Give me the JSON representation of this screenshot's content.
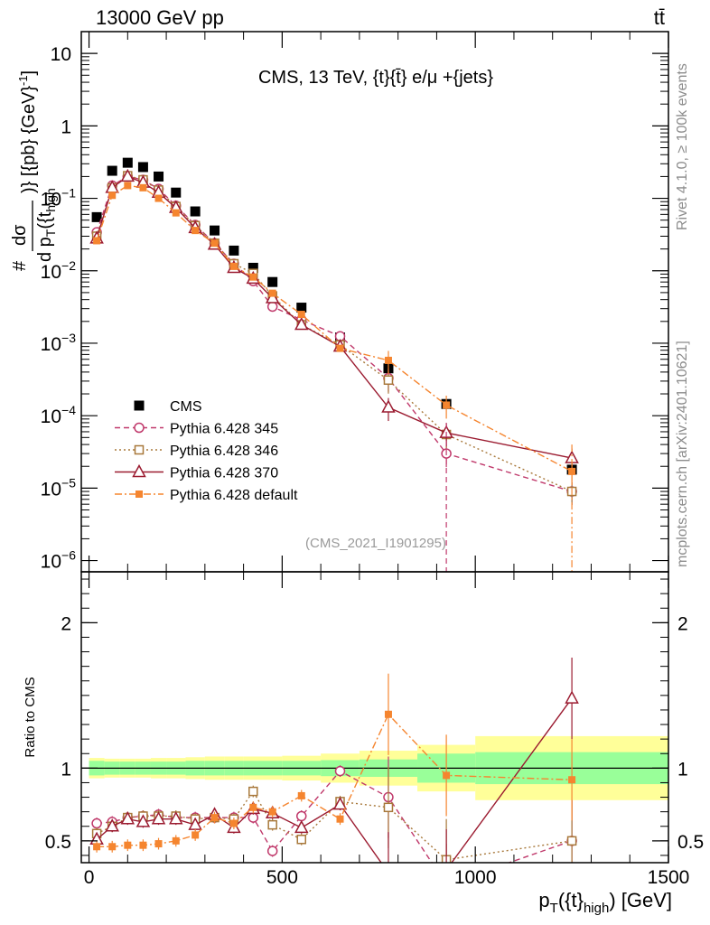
{
  "header": {
    "energy_label": "13000 GeV pp",
    "process_label": "tt̄"
  },
  "side": {
    "rivet_label": "Rivet 4.1.0, ≥ 100k events",
    "site_label": "mcplots.cern.ch [arXiv:2401.10621]"
  },
  "chart_data": [
    {
      "type": "scatter",
      "panel": "main",
      "title": "CMS, 13 TeV, {t}{t̄} e/μ +{jets}",
      "analysis_tag": "(CMS_2021_I1901295)",
      "ylabel": "#frac{dσ}{d p_T({t}_high)} [{pb} {GeV}⁻¹]",
      "ylabel_parts": [
        "#",
        "dσ",
        "d p",
        "T",
        "({t",
        "high",
        ")} [{pb} {GeV}",
        "-1",
        "]"
      ],
      "yscale": "log",
      "ylim": [
        7e-07,
        20
      ],
      "xlim": [
        -20,
        1500
      ],
      "yticks": [
        {
          "value": 1e-06,
          "base": "10",
          "exp": "−6"
        },
        {
          "value": 1e-05,
          "base": "10",
          "exp": "−5"
        },
        {
          "value": 0.0001,
          "base": "10",
          "exp": "−4"
        },
        {
          "value": 0.001,
          "base": "10",
          "exp": "−3"
        },
        {
          "value": 0.01,
          "base": "10",
          "exp": "−2"
        },
        {
          "value": 0.1,
          "base": "10",
          "exp": "−1"
        },
        {
          "value": 1,
          "base": "1",
          "exp": ""
        },
        {
          "value": 10,
          "base": "10",
          "exp": ""
        }
      ],
      "legend": [
        {
          "key": "cms",
          "label": "CMS"
        },
        {
          "key": "p345",
          "label": "Pythia 6.428 345"
        },
        {
          "key": "p346",
          "label": "Pythia 6.428 346"
        },
        {
          "key": "p370",
          "label": "Pythia 6.428 370"
        },
        {
          "key": "pdef",
          "label": "Pythia 6.428 default"
        }
      ],
      "series": [
        {
          "key": "cms",
          "name": "CMS",
          "color": "#000000",
          "marker": "square-filled",
          "x": [
            20,
            60,
            100,
            140,
            180,
            225,
            275,
            325,
            375,
            425,
            475,
            550,
            650,
            775,
            925,
            1250
          ],
          "y": [
            0.055,
            0.24,
            0.31,
            0.27,
            0.2,
            0.12,
            0.066,
            0.036,
            0.019,
            0.011,
            0.007,
            0.0031,
            0.0012,
            0.00045,
            0.000145,
            1.8e-05
          ]
        },
        {
          "key": "p345",
          "name": "Pythia 6.428 345",
          "color": "#c0396b",
          "marker": "circle-open",
          "dash": "6,4",
          "x": [
            20,
            60,
            100,
            140,
            180,
            225,
            275,
            325,
            375,
            425,
            475,
            550,
            650,
            775,
            925,
            1250
          ],
          "y": [
            0.034,
            0.15,
            0.2,
            0.18,
            0.135,
            0.079,
            0.043,
            0.024,
            0.0125,
            0.0072,
            0.0032,
            0.0021,
            0.00125,
            0.00033,
            3e-05,
            9e-06
          ]
        },
        {
          "key": "p346",
          "name": "Pythia 6.428 346",
          "color": "#a8783a",
          "marker": "square-open",
          "dash": "2,3",
          "x": [
            20,
            60,
            100,
            140,
            180,
            225,
            275,
            325,
            375,
            425,
            475,
            550,
            650,
            775,
            925,
            1250
          ],
          "y": [
            0.03,
            0.14,
            0.205,
            0.18,
            0.13,
            0.077,
            0.042,
            0.024,
            0.0125,
            0.0092,
            0.0045,
            0.0018,
            0.00095,
            0.00031,
            5.5e-05,
            9e-06
          ]
        },
        {
          "key": "p370",
          "name": "Pythia 6.428 370",
          "color": "#9b1b30",
          "marker": "triangle-open",
          "x": [
            20,
            60,
            100,
            140,
            180,
            225,
            275,
            325,
            375,
            425,
            475,
            550,
            650,
            775,
            925,
            1250
          ],
          "y": [
            0.028,
            0.14,
            0.2,
            0.165,
            0.12,
            0.074,
            0.039,
            0.023,
            0.011,
            0.0078,
            0.0042,
            0.0018,
            0.0009,
            0.00013,
            5.8e-05,
            2.6e-05
          ]
        },
        {
          "key": "pdef",
          "name": "Pythia 6.428 default",
          "color": "#f5852f",
          "marker": "square-small-filled",
          "dash": "8,3,2,3",
          "x": [
            20,
            60,
            100,
            140,
            180,
            225,
            275,
            325,
            375,
            425,
            475,
            550,
            650,
            775,
            925,
            1250
          ],
          "y": [
            0.026,
            0.11,
            0.15,
            0.14,
            0.1,
            0.063,
            0.036,
            0.024,
            0.0115,
            0.0082,
            0.0049,
            0.0025,
            0.00085,
            0.00058,
            0.00014,
            1.7e-05
          ]
        }
      ]
    },
    {
      "type": "line",
      "panel": "ratio",
      "ylabel": "Ratio to CMS",
      "xlabel": "p_T({t}_high) [GeV]",
      "xlabel_parts": [
        "p",
        "T",
        "({t}",
        "high",
        ") [GeV]"
      ],
      "ylim": [
        0.35,
        2.35
      ],
      "xlim": [
        -20,
        1500
      ],
      "xticks": [
        0,
        500,
        1000,
        1500
      ],
      "yticks": [
        0.5,
        1,
        2
      ],
      "band_edges": [
        0,
        40,
        80,
        120,
        160,
        200,
        250,
        300,
        350,
        400,
        450,
        500,
        600,
        700,
        850,
        1000,
        1500
      ],
      "band_inner": [
        0.05,
        0.045,
        0.045,
        0.045,
        0.045,
        0.045,
        0.05,
        0.05,
        0.05,
        0.05,
        0.05,
        0.05,
        0.055,
        0.06,
        0.1,
        0.11,
        0.11
      ],
      "band_outer": [
        0.07,
        0.065,
        0.065,
        0.065,
        0.07,
        0.07,
        0.075,
        0.08,
        0.08,
        0.08,
        0.08,
        0.085,
        0.1,
        0.12,
        0.16,
        0.22,
        0.22
      ],
      "series": [
        {
          "key": "p345",
          "name": "Pythia 6.428 345",
          "color": "#c0396b",
          "marker": "circle-open",
          "dash": "6,4",
          "x": [
            20,
            60,
            100,
            140,
            180,
            225,
            275,
            325,
            375,
            425,
            475,
            550,
            650,
            775,
            925,
            1250
          ],
          "y": [
            0.62,
            0.63,
            0.66,
            0.67,
            0.68,
            0.66,
            0.66,
            0.66,
            0.66,
            0.66,
            0.43,
            0.67,
            0.98,
            0.8,
            0.2,
            0.5
          ]
        },
        {
          "key": "p346",
          "name": "Pythia 6.428 346",
          "color": "#a8783a",
          "marker": "square-open",
          "dash": "2,3",
          "x": [
            20,
            60,
            100,
            140,
            180,
            225,
            275,
            325,
            375,
            425,
            475,
            550,
            650,
            775,
            925,
            1250
          ],
          "y": [
            0.55,
            0.6,
            0.66,
            0.67,
            0.67,
            0.67,
            0.65,
            0.66,
            0.65,
            0.84,
            0.61,
            0.51,
            0.77,
            0.73,
            0.37,
            0.5
          ]
        },
        {
          "key": "p370",
          "name": "Pythia 6.428 370",
          "color": "#9b1b30",
          "marker": "triangle-open",
          "x": [
            20,
            60,
            100,
            140,
            180,
            225,
            275,
            325,
            375,
            425,
            475,
            550,
            650,
            775,
            925,
            1250
          ],
          "y": [
            0.51,
            0.6,
            0.65,
            0.63,
            0.65,
            0.65,
            0.61,
            0.68,
            0.59,
            0.72,
            0.69,
            0.59,
            0.75,
            0.28,
            0.3,
            1.48
          ]
        },
        {
          "key": "pdef",
          "name": "Pythia 6.428 default",
          "color": "#f5852f",
          "marker": "square-small-filled",
          "dash": "8,3,2,3",
          "x": [
            20,
            60,
            100,
            140,
            180,
            225,
            275,
            325,
            375,
            425,
            475,
            550,
            650,
            775,
            925,
            1250
          ],
          "y": [
            0.46,
            0.46,
            0.47,
            0.47,
            0.48,
            0.5,
            0.54,
            0.66,
            0.62,
            0.73,
            0.7,
            0.81,
            0.65,
            1.37,
            0.95,
            0.92
          ]
        }
      ]
    }
  ]
}
